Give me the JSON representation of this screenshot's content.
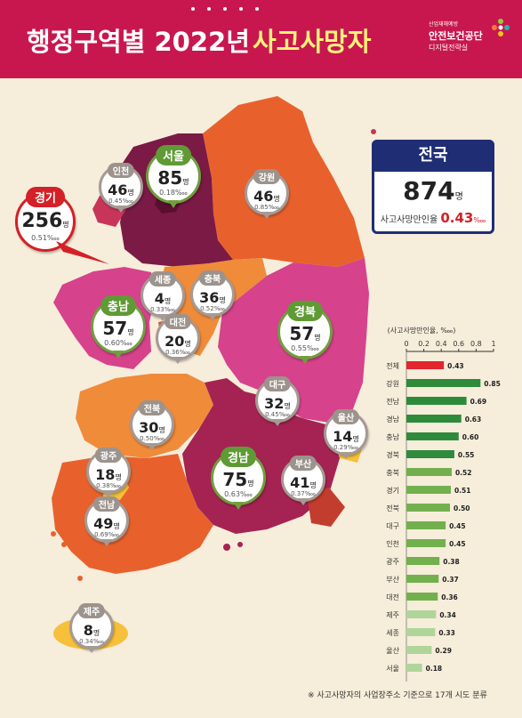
{
  "header": {
    "title_prefix": "행정구역별 2022년",
    "title_highlight": "사고사망자"
  },
  "logo": {
    "ministry": "산업재해예방",
    "agency": "안전보건공단",
    "dept": "디지털전략실"
  },
  "colors": {
    "header_bg": "#c8174f",
    "title_highlight": "#fff27a",
    "national_box": "#1f2e74",
    "accent_red": "#d42027",
    "bar_total": "#e1262d",
    "bar_dark_green": "#2e8b3c",
    "bar_mid_green": "#72b04e",
    "bar_light_green": "#b0d59a"
  },
  "national": {
    "label": "전국",
    "count": "874",
    "count_unit": "명",
    "rate_label": "사고사망만인율",
    "rate_value": "0.43",
    "rate_unit": "‱"
  },
  "regions": [
    {
      "id": "seoul",
      "name": "서울",
      "count": "85",
      "unit": "명",
      "rate": "0.18",
      "rate_unit": "‱",
      "style": "big"
    },
    {
      "id": "incheon",
      "name": "인천",
      "count": "46",
      "unit": "명",
      "rate": "0.45",
      "rate_unit": "‱",
      "style": "small"
    },
    {
      "id": "gyeonggi",
      "name": "경기",
      "count": "256",
      "unit": "명",
      "rate": "0.51",
      "rate_unit": "‱",
      "style": "red"
    },
    {
      "id": "gangwon",
      "name": "강원",
      "count": "46",
      "unit": "명",
      "rate": "0.85",
      "rate_unit": "‱",
      "style": "small"
    },
    {
      "id": "sejong",
      "name": "세종",
      "count": "4",
      "unit": "명",
      "rate": "0.33",
      "rate_unit": "‱",
      "style": "small"
    },
    {
      "id": "chungbuk",
      "name": "충북",
      "count": "36",
      "unit": "명",
      "rate": "0.52",
      "rate_unit": "‱",
      "style": "small"
    },
    {
      "id": "chungnam",
      "name": "충남",
      "count": "57",
      "unit": "명",
      "rate": "0.60",
      "rate_unit": "‱",
      "style": "big"
    },
    {
      "id": "daejeon",
      "name": "대전",
      "count": "20",
      "unit": "명",
      "rate": "0.36",
      "rate_unit": "‱",
      "style": "small"
    },
    {
      "id": "gyeongbuk",
      "name": "경북",
      "count": "57",
      "unit": "명",
      "rate": "0.55",
      "rate_unit": "‱",
      "style": "big"
    },
    {
      "id": "daegu",
      "name": "대구",
      "count": "32",
      "unit": "명",
      "rate": "0.45",
      "rate_unit": "‱",
      "style": "small"
    },
    {
      "id": "jeonbuk",
      "name": "전북",
      "count": "30",
      "unit": "명",
      "rate": "0.50",
      "rate_unit": "‱",
      "style": "small"
    },
    {
      "id": "ulsan",
      "name": "울산",
      "count": "14",
      "unit": "명",
      "rate": "0.29",
      "rate_unit": "‱",
      "style": "small"
    },
    {
      "id": "gwangju",
      "name": "광주",
      "count": "18",
      "unit": "명",
      "rate": "0.38",
      "rate_unit": "‱",
      "style": "small"
    },
    {
      "id": "gyeongnam",
      "name": "경남",
      "count": "75",
      "unit": "명",
      "rate": "0.63",
      "rate_unit": "‱",
      "style": "big"
    },
    {
      "id": "busan",
      "name": "부산",
      "count": "41",
      "unit": "명",
      "rate": "0.37",
      "rate_unit": "‱",
      "style": "small"
    },
    {
      "id": "jeonnam",
      "name": "전남",
      "count": "49",
      "unit": "명",
      "rate": "0.69",
      "rate_unit": "‱",
      "style": "small"
    },
    {
      "id": "jeju",
      "name": "제주",
      "count": "8",
      "unit": "명",
      "rate": "0.34",
      "rate_unit": "‱",
      "style": "small"
    }
  ],
  "chart_data": {
    "type": "bar",
    "orientation": "horizontal",
    "title": "(사고사망만인율, ‱)",
    "xlim": [
      0,
      1
    ],
    "ticks": [
      "0",
      "0.2",
      "0.4",
      "0.6",
      "0.8",
      "1"
    ],
    "grid": false,
    "categories": [
      "전체",
      "강원",
      "전남",
      "경남",
      "충남",
      "경북",
      "충북",
      "경기",
      "전북",
      "대구",
      "인천",
      "광주",
      "부산",
      "대전",
      "제주",
      "세종",
      "울산",
      "서울"
    ],
    "values": [
      0.43,
      0.85,
      0.69,
      0.63,
      0.6,
      0.55,
      0.52,
      0.51,
      0.5,
      0.45,
      0.45,
      0.38,
      0.37,
      0.36,
      0.34,
      0.33,
      0.29,
      0.18
    ],
    "labels": [
      "0.43",
      "0.85",
      "0.69",
      "0.63",
      "0.60",
      "0.55",
      "0.52",
      "0.51",
      "0.50",
      "0.45",
      "0.45",
      "0.38",
      "0.37",
      "0.36",
      "0.34",
      "0.33",
      "0.29",
      "0.18"
    ]
  },
  "footnote": "※ 사고사망자의 사업장주소 기준으로 17개 시도 분류"
}
